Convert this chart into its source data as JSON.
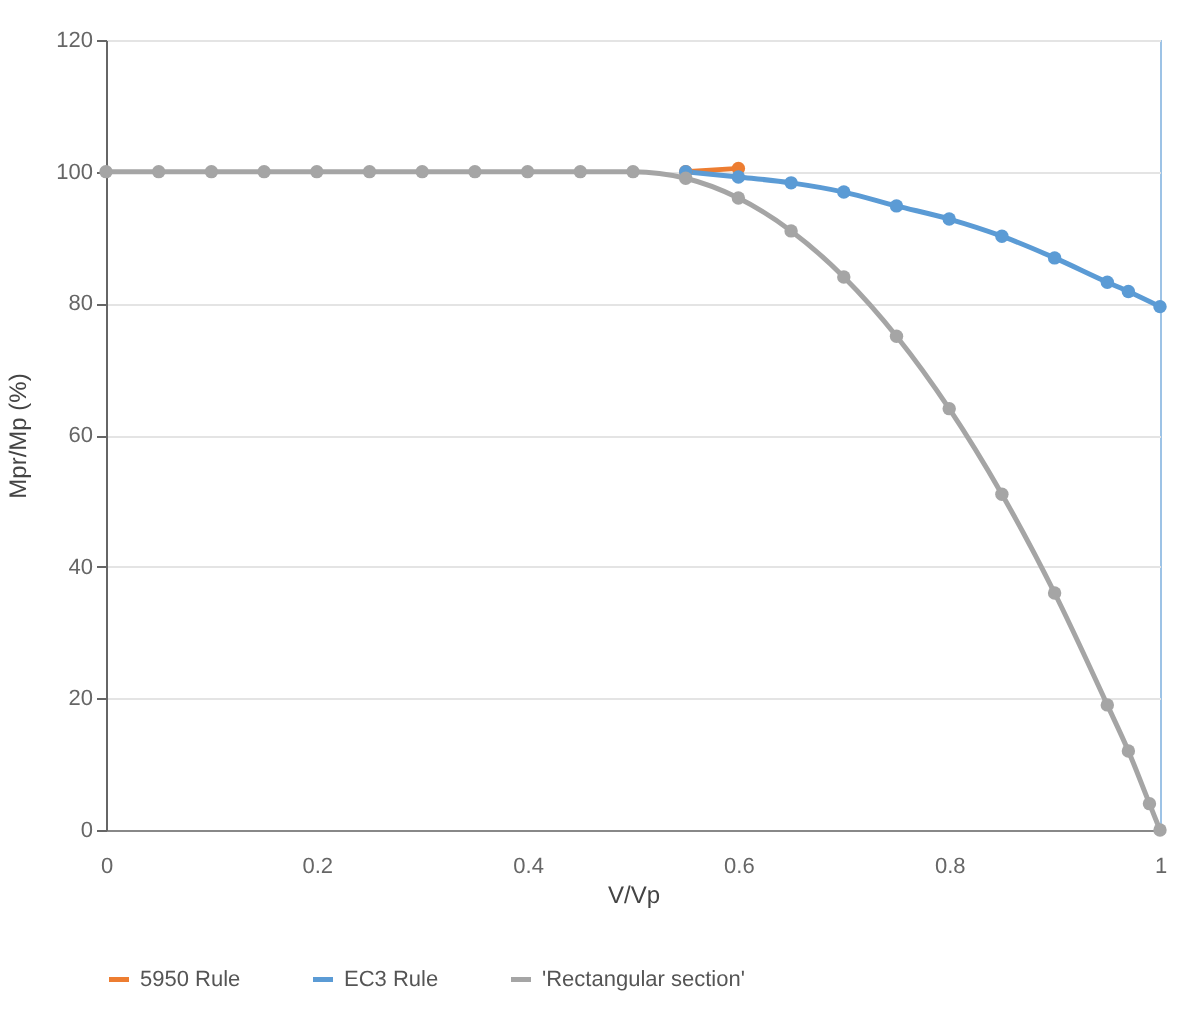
{
  "chart_data": {
    "type": "line",
    "xlabel": "V/Vp",
    "ylabel": "Mpr/Mp (%)",
    "xlim": [
      0,
      1
    ],
    "xticks": [
      0,
      0.2,
      0.4,
      0.6,
      0.8,
      1
    ],
    "ylim": [
      0,
      120
    ],
    "yticks": [
      0,
      20,
      40,
      60,
      80,
      100,
      120
    ],
    "grid": "y",
    "legend": "bottom",
    "marker": "circle",
    "line_style": "solid",
    "series": [
      {
        "name": "5950 Rule",
        "color": "#ed7d31",
        "x": [
          0.55,
          0.6
        ],
        "values": [
          100,
          100.5
        ]
      },
      {
        "name": "EC3 Rule",
        "color": "#5b9bd5",
        "x": [
          0.55,
          0.6,
          0.65,
          0.7,
          0.75,
          0.8,
          0.85,
          0.9,
          0.95,
          0.97,
          1
        ],
        "values": [
          100,
          99.2,
          98.3,
          96.9,
          94.8,
          92.8,
          90.2,
          86.9,
          83.2,
          81.8,
          79.5
        ]
      },
      {
        "name": "'Rectangular section'",
        "color": "#a5a5a5",
        "x": [
          0,
          0.05,
          0.1,
          0.15,
          0.2,
          0.25,
          0.3,
          0.35,
          0.4,
          0.45,
          0.5,
          0.55,
          0.6,
          0.65,
          0.7,
          0.75,
          0.8,
          0.85,
          0.9,
          0.95,
          0.97,
          0.99,
          1
        ],
        "values": [
          100,
          100,
          100,
          100,
          100,
          100,
          100,
          100,
          100,
          100,
          100,
          99,
          96,
          91,
          84,
          75,
          64,
          51,
          36,
          19,
          12,
          4,
          0
        ]
      }
    ]
  }
}
